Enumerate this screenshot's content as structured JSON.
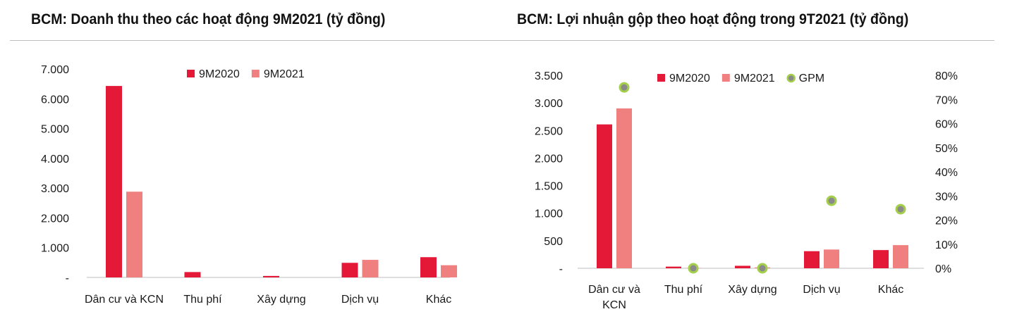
{
  "chart_data": [
    {
      "type": "bar",
      "title": "BCM: Doanh thu theo các hoạt động 9M2021 (tỷ đồng)",
      "categories": [
        "Dân cư và KCN",
        "Thu phí",
        "Xây dựng",
        "Dịch vụ",
        "Khác"
      ],
      "series": [
        {
          "name": "9M2020",
          "values": [
            6430,
            180,
            50,
            490,
            680
          ]
        },
        {
          "name": "9M2021",
          "values": [
            2880,
            0,
            0,
            590,
            410
          ]
        }
      ],
      "yticks": [
        "-",
        "1.000",
        "2.000",
        "3.000",
        "4.000",
        "5.000",
        "6.000",
        "7.000"
      ],
      "ylim": [
        0,
        7000
      ],
      "legend": "top",
      "grid": false,
      "colors": [
        "#e31937",
        "#f08080"
      ]
    },
    {
      "type": "bar",
      "title": "BCM: Lợi nhuận gộp theo hoạt động trong 9T2021 (tỷ đồng)",
      "categories": [
        "Dân cư và KCN",
        "Thu phí",
        "Xây dựng",
        "Dịch vụ",
        "Khác"
      ],
      "series": [
        {
          "name": "9M2020",
          "values": [
            2610,
            30,
            45,
            310,
            330
          ]
        },
        {
          "name": "9M2021",
          "values": [
            2900,
            5,
            15,
            340,
            420
          ]
        },
        {
          "name": "GPM",
          "type": "scatter",
          "axis": "right",
          "values": [
            75,
            0,
            0,
            28,
            24.5
          ]
        }
      ],
      "yticks": [
        "-",
        "500",
        "1.000",
        "1.500",
        "2.000",
        "2.500",
        "3.000",
        "3.500"
      ],
      "ylim": [
        0,
        3500
      ],
      "y2ticks": [
        "0%",
        "10%",
        "20%",
        "30%",
        "40%",
        "50%",
        "60%",
        "70%",
        "80%"
      ],
      "y2lim": [
        0,
        80
      ],
      "legend": "top",
      "grid": false,
      "colors": [
        "#e31937",
        "#f08080",
        "#8bc34a"
      ]
    }
  ]
}
